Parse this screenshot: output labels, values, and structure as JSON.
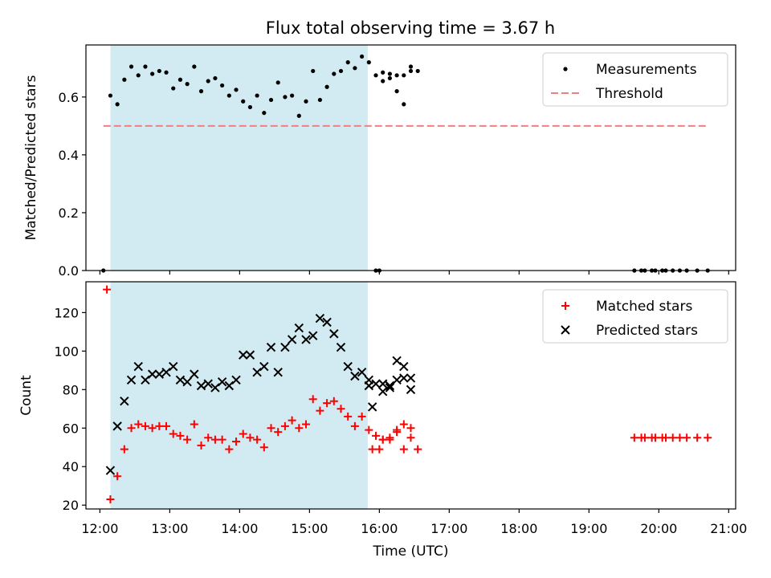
{
  "figure": {
    "title": "Flux total observing time = 3.67 h"
  },
  "chart_data": [
    {
      "type": "scatter",
      "title": "Flux total observing time = 3.67 h",
      "xlabel": "",
      "ylabel": "Matched/Predicted stars",
      "xlim": [
        "11:48",
        "21:06"
      ],
      "ylim": [
        0,
        0.78
      ],
      "y_ticks": [
        "0.0",
        "0.2",
        "0.4",
        "0.6"
      ],
      "highlight_span": {
        "start": "12:09",
        "end": "15:50",
        "color": "#add8e6"
      },
      "legend": {
        "position": "upper right",
        "entries": [
          "Measurements",
          "Threshold"
        ]
      },
      "series": [
        {
          "name": "Measurements",
          "marker": "dot",
          "color": "#000000",
          "points": [
            [
              "12:03",
              0.0
            ],
            [
              "12:09",
              0.605
            ],
            [
              "12:15",
              0.575
            ],
            [
              "12:21",
              0.66
            ],
            [
              "12:27",
              0.705
            ],
            [
              "12:33",
              0.675
            ],
            [
              "12:39",
              0.705
            ],
            [
              "12:45",
              0.68
            ],
            [
              "12:51",
              0.69
            ],
            [
              "12:57",
              0.685
            ],
            [
              "13:03",
              0.63
            ],
            [
              "13:09",
              0.66
            ],
            [
              "13:15",
              0.645
            ],
            [
              "13:21",
              0.705
            ],
            [
              "13:27",
              0.62
            ],
            [
              "13:33",
              0.655
            ],
            [
              "13:39",
              0.665
            ],
            [
              "13:45",
              0.64
            ],
            [
              "13:51",
              0.605
            ],
            [
              "13:57",
              0.625
            ],
            [
              "14:03",
              0.585
            ],
            [
              "14:09",
              0.565
            ],
            [
              "14:15",
              0.605
            ],
            [
              "14:21",
              0.545
            ],
            [
              "14:27",
              0.59
            ],
            [
              "14:33",
              0.65
            ],
            [
              "14:39",
              0.6
            ],
            [
              "14:45",
              0.605
            ],
            [
              "14:51",
              0.535
            ],
            [
              "14:57",
              0.585
            ],
            [
              "15:03",
              0.69
            ],
            [
              "15:09",
              0.59
            ],
            [
              "15:15",
              0.635
            ],
            [
              "15:21",
              0.68
            ],
            [
              "15:27",
              0.69
            ],
            [
              "15:33",
              0.72
            ],
            [
              "15:39",
              0.7
            ],
            [
              "15:45",
              0.74
            ],
            [
              "15:51",
              0.72
            ],
            [
              "15:57",
              0.675
            ],
            [
              "16:03",
              0.655
            ],
            [
              "16:09",
              0.68
            ],
            [
              "16:15",
              0.675
            ],
            [
              "16:21",
              0.675
            ],
            [
              "16:27",
              0.705
            ],
            [
              "16:33",
              0.69
            ],
            [
              "15:57",
              0.0
            ],
            [
              "16:00",
              0.0
            ],
            [
              "16:03",
              0.685
            ],
            [
              "16:09",
              0.665
            ],
            [
              "16:15",
              0.62
            ],
            [
              "16:21",
              0.575
            ],
            [
              "16:27",
              0.69
            ],
            [
              "19:39",
              0.0
            ],
            [
              "19:45",
              0.0
            ],
            [
              "19:48",
              0.0
            ],
            [
              "19:54",
              0.0
            ],
            [
              "19:57",
              0.0
            ],
            [
              "20:03",
              0.0
            ],
            [
              "20:06",
              0.0
            ],
            [
              "20:12",
              0.0
            ],
            [
              "20:18",
              0.0
            ],
            [
              "20:24",
              0.0
            ],
            [
              "20:33",
              0.0
            ],
            [
              "20:42",
              0.0
            ]
          ]
        },
        {
          "name": "Threshold",
          "type": "line",
          "style": "dashed",
          "color": "#f08080",
          "points": [
            [
              "12:03",
              0.5
            ],
            [
              "20:42",
              0.5
            ]
          ]
        }
      ]
    },
    {
      "type": "scatter",
      "title": "",
      "xlabel": "Time (UTC)",
      "ylabel": "Count",
      "xlim": [
        "11:48",
        "21:06"
      ],
      "ylim": [
        18,
        136
      ],
      "x_ticks": [
        "12:00",
        "13:00",
        "14:00",
        "15:00",
        "16:00",
        "17:00",
        "18:00",
        "19:00",
        "20:00",
        "21:00"
      ],
      "y_ticks": [
        "20",
        "40",
        "60",
        "80",
        "100",
        "120"
      ],
      "highlight_span": {
        "start": "12:09",
        "end": "15:50",
        "color": "#add8e6"
      },
      "legend": {
        "position": "upper right",
        "entries": [
          "Matched stars",
          "Predicted stars"
        ]
      },
      "series": [
        {
          "name": "Matched stars",
          "marker": "plus",
          "color": "#ff0000",
          "points": [
            [
              "12:06",
              132
            ],
            [
              "12:09",
              23
            ],
            [
              "12:15",
              35
            ],
            [
              "12:21",
              49
            ],
            [
              "12:27",
              60
            ],
            [
              "12:33",
              62
            ],
            [
              "12:39",
              61
            ],
            [
              "12:45",
              60
            ],
            [
              "12:51",
              61
            ],
            [
              "12:57",
              61
            ],
            [
              "13:03",
              57
            ],
            [
              "13:09",
              56
            ],
            [
              "13:15",
              54
            ],
            [
              "13:21",
              62
            ],
            [
              "13:27",
              51
            ],
            [
              "13:33",
              55
            ],
            [
              "13:39",
              54
            ],
            [
              "13:45",
              54
            ],
            [
              "13:51",
              49
            ],
            [
              "13:57",
              53
            ],
            [
              "14:03",
              57
            ],
            [
              "14:09",
              55
            ],
            [
              "14:15",
              54
            ],
            [
              "14:21",
              50
            ],
            [
              "14:27",
              60
            ],
            [
              "14:33",
              58
            ],
            [
              "14:39",
              61
            ],
            [
              "14:45",
              64
            ],
            [
              "14:51",
              60
            ],
            [
              "14:57",
              62
            ],
            [
              "15:03",
              75
            ],
            [
              "15:09",
              69
            ],
            [
              "15:15",
              73
            ],
            [
              "15:21",
              74
            ],
            [
              "15:27",
              70
            ],
            [
              "15:33",
              66
            ],
            [
              "15:39",
              61
            ],
            [
              "15:45",
              66
            ],
            [
              "15:51",
              59
            ],
            [
              "15:57",
              56
            ],
            [
              "16:03",
              54
            ],
            [
              "16:09",
              55
            ],
            [
              "16:15",
              58
            ],
            [
              "16:21",
              62
            ],
            [
              "16:27",
              60
            ],
            [
              "16:33",
              49
            ],
            [
              "15:54",
              49
            ],
            [
              "16:00",
              49
            ],
            [
              "16:03",
              54
            ],
            [
              "16:09",
              54
            ],
            [
              "16:15",
              59
            ],
            [
              "16:21",
              49
            ],
            [
              "16:27",
              55
            ],
            [
              "19:39",
              55
            ],
            [
              "19:45",
              55
            ],
            [
              "19:48",
              55
            ],
            [
              "19:54",
              55
            ],
            [
              "19:57",
              55
            ],
            [
              "20:03",
              55
            ],
            [
              "20:06",
              55
            ],
            [
              "20:12",
              55
            ],
            [
              "20:18",
              55
            ],
            [
              "20:24",
              55
            ],
            [
              "20:33",
              55
            ],
            [
              "20:42",
              55
            ]
          ]
        },
        {
          "name": "Predicted stars",
          "marker": "x",
          "color": "#000000",
          "points": [
            [
              "12:09",
              38
            ],
            [
              "12:15",
              61
            ],
            [
              "12:21",
              74
            ],
            [
              "12:27",
              85
            ],
            [
              "12:33",
              92
            ],
            [
              "12:39",
              85
            ],
            [
              "12:45",
              88
            ],
            [
              "12:51",
              88
            ],
            [
              "12:57",
              89
            ],
            [
              "13:03",
              92
            ],
            [
              "13:09",
              85
            ],
            [
              "13:15",
              84
            ],
            [
              "13:21",
              88
            ],
            [
              "13:27",
              82
            ],
            [
              "13:33",
              83
            ],
            [
              "13:39",
              81
            ],
            [
              "13:45",
              84
            ],
            [
              "13:51",
              82
            ],
            [
              "13:57",
              85
            ],
            [
              "14:03",
              98
            ],
            [
              "14:09",
              98
            ],
            [
              "14:15",
              89
            ],
            [
              "14:21",
              92
            ],
            [
              "14:27",
              102
            ],
            [
              "14:33",
              89
            ],
            [
              "14:39",
              102
            ],
            [
              "14:45",
              106
            ],
            [
              "14:51",
              112
            ],
            [
              "14:57",
              106
            ],
            [
              "15:03",
              108
            ],
            [
              "15:09",
              117
            ],
            [
              "15:15",
              115
            ],
            [
              "15:21",
              109
            ],
            [
              "15:27",
              102
            ],
            [
              "15:33",
              92
            ],
            [
              "15:39",
              87
            ],
            [
              "15:45",
              89
            ],
            [
              "15:51",
              82
            ],
            [
              "15:57",
              83
            ],
            [
              "16:03",
              83
            ],
            [
              "16:09",
              81
            ],
            [
              "16:15",
              85
            ],
            [
              "16:21",
              92
            ],
            [
              "16:27",
              86
            ],
            [
              "15:51",
              85
            ],
            [
              "15:54",
              71
            ],
            [
              "16:03",
              79
            ],
            [
              "16:09",
              82
            ],
            [
              "16:15",
              95
            ],
            [
              "16:21",
              86
            ],
            [
              "16:27",
              80
            ]
          ]
        }
      ]
    }
  ]
}
